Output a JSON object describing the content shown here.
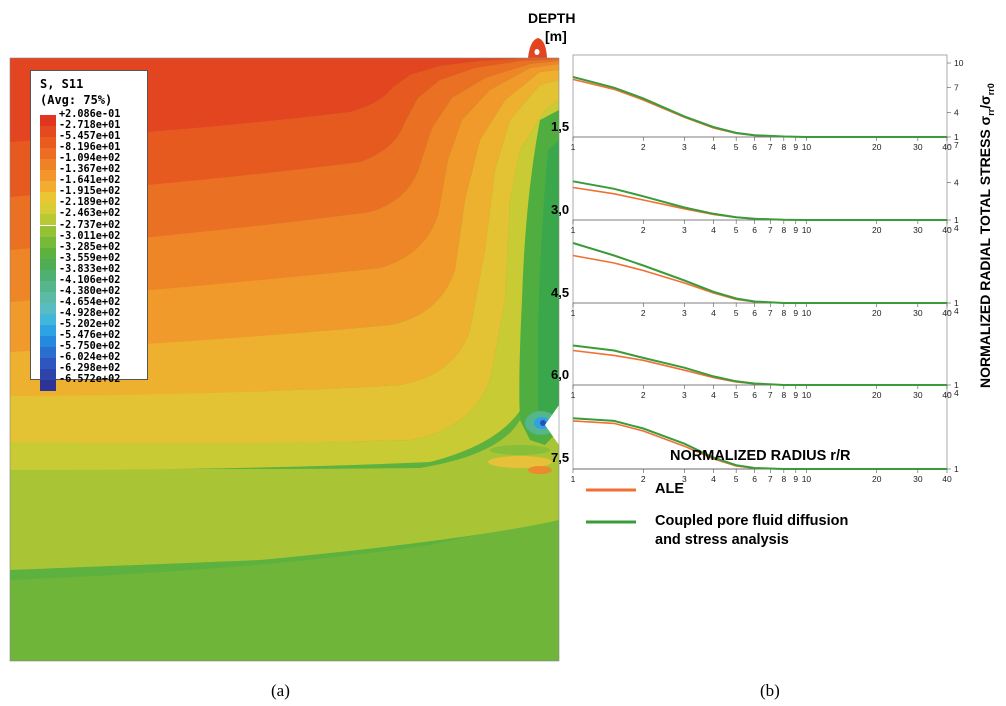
{
  "legend": {
    "title_line1": "S, S11",
    "title_line2": "(Avg: 75%)",
    "values": [
      "+2.086e-01",
      "-2.718e+01",
      "-5.457e+01",
      "-8.196e+01",
      "-1.094e+02",
      "-1.367e+02",
      "-1.641e+02",
      "-1.915e+02",
      "-2.189e+02",
      "-2.463e+02",
      "-2.737e+02",
      "-3.011e+02",
      "-3.285e+02",
      "-3.559e+02",
      "-3.833e+02",
      "-4.106e+02",
      "-4.380e+02",
      "-4.654e+02",
      "-4.928e+02",
      "-5.202e+02",
      "-5.476e+02",
      "-5.750e+02",
      "-6.024e+02",
      "-6.298e+02",
      "-6.572e+02"
    ],
    "colors": [
      "#e2351f",
      "#e6481f",
      "#e95b1f",
      "#ed6e22",
      "#f08226",
      "#f3962b",
      "#f2ad30",
      "#eac534",
      "#d6cc36",
      "#b7c935",
      "#95c235",
      "#76ba37",
      "#5cb23c",
      "#4fae55",
      "#50b06f",
      "#55b58b",
      "#5cbaa6",
      "#58bcc2",
      "#43b6dc",
      "#2ea3e4",
      "#2589dd",
      "#2a6fd0",
      "#2d57be",
      "#2e44aa",
      "#2c3497"
    ]
  },
  "depth_header": {
    "line1": "DEPTH",
    "line2": "[m]"
  },
  "panels": [
    {
      "depth": "1,5",
      "yticks": [
        "10",
        "7",
        "4",
        "1"
      ]
    },
    {
      "depth": "3,0",
      "yticks": [
        "7",
        "4",
        "1"
      ]
    },
    {
      "depth": "4,5",
      "yticks": [
        "4",
        "1"
      ]
    },
    {
      "depth": "6,0",
      "yticks": [
        "4",
        "1"
      ]
    },
    {
      "depth": "7,5",
      "yticks": [
        "4",
        "1"
      ]
    }
  ],
  "x_ticks": [
    "1",
    "2",
    "3",
    "4",
    "5",
    "6",
    "7",
    "8",
    "9",
    "10",
    "20",
    "30",
    "40"
  ],
  "x_axis_label": "NORMALIZED RADIUS r/R",
  "y_axis_label": "NORMALIZED RADIAL TOTAL STRESS σ",
  "y_axis_sub_rr": "rr",
  "y_axis_slash": "/σ",
  "y_axis_sub_rr0": "rr0",
  "key": {
    "ale": "ALE",
    "coupled_line1": "Coupled pore fluid diffusion",
    "coupled_line2": "and stress analysis",
    "ale_color": "#f07032",
    "coupled_color": "#3a9b3a"
  },
  "captions": {
    "a": "(a)",
    "b": "(b)"
  },
  "chart_data": [
    {
      "type": "line",
      "depth": "1,5",
      "x": [
        1,
        1.5,
        2,
        3,
        4,
        5,
        6,
        8,
        10,
        20,
        40
      ],
      "series": [
        {
          "name": "ALE",
          "values": [
            8.0,
            6.8,
            5.5,
            3.4,
            2.1,
            1.45,
            1.2,
            1.05,
            1.0,
            1.0,
            1.0
          ]
        },
        {
          "name": "Coupled pore fluid diffusion and stress analysis",
          "values": [
            8.3,
            7.0,
            5.7,
            3.5,
            2.2,
            1.5,
            1.22,
            1.06,
            1.0,
            1.0,
            1.0
          ]
        }
      ],
      "ylim": [
        1,
        10
      ]
    },
    {
      "type": "line",
      "depth": "3,0",
      "x": [
        1,
        1.5,
        2,
        3,
        4,
        5,
        6,
        8,
        10,
        20,
        40
      ],
      "series": [
        {
          "name": "ALE",
          "values": [
            3.6,
            3.1,
            2.6,
            1.9,
            1.45,
            1.2,
            1.1,
            1.02,
            1.0,
            1.0,
            1.0
          ]
        },
        {
          "name": "Coupled pore fluid diffusion and stress analysis",
          "values": [
            4.1,
            3.5,
            2.9,
            2.0,
            1.5,
            1.22,
            1.1,
            1.02,
            1.0,
            1.0,
            1.0
          ]
        }
      ],
      "ylim": [
        1,
        7
      ]
    },
    {
      "type": "line",
      "depth": "4,5",
      "x": [
        1,
        1.5,
        2,
        3,
        4,
        5,
        6,
        8,
        10,
        20,
        40
      ],
      "series": [
        {
          "name": "ALE",
          "values": [
            2.9,
            2.6,
            2.3,
            1.8,
            1.4,
            1.15,
            1.05,
            1.0,
            1.0,
            1.0,
            1.0
          ]
        },
        {
          "name": "Coupled pore fluid diffusion and stress analysis",
          "values": [
            3.4,
            2.9,
            2.5,
            1.9,
            1.45,
            1.18,
            1.06,
            1.0,
            1.0,
            1.0,
            1.0
          ]
        }
      ],
      "ylim": [
        1,
        4
      ]
    },
    {
      "type": "line",
      "depth": "6,0",
      "x": [
        1,
        1.5,
        2,
        3,
        4,
        5,
        6,
        8,
        10,
        20,
        40
      ],
      "series": [
        {
          "name": "ALE",
          "values": [
            2.4,
            2.2,
            2.0,
            1.6,
            1.3,
            1.12,
            1.05,
            1.0,
            1.0,
            1.0,
            1.0
          ]
        },
        {
          "name": "Coupled pore fluid diffusion and stress analysis",
          "values": [
            2.6,
            2.4,
            2.1,
            1.7,
            1.35,
            1.15,
            1.06,
            1.0,
            1.0,
            1.0,
            1.0
          ]
        }
      ],
      "ylim": [
        1,
        4
      ]
    },
    {
      "type": "line",
      "depth": "7,5",
      "x": [
        1,
        1.5,
        2,
        3,
        4,
        5,
        6,
        8,
        10,
        20,
        40
      ],
      "series": [
        {
          "name": "ALE",
          "values": [
            2.9,
            2.8,
            2.5,
            1.9,
            1.4,
            1.12,
            1.03,
            1.0,
            1.0,
            1.0,
            1.0
          ]
        },
        {
          "name": "Coupled pore fluid diffusion and stress analysis",
          "values": [
            3.0,
            2.9,
            2.6,
            2.0,
            1.45,
            1.15,
            1.04,
            1.0,
            1.0,
            1.0,
            1.0
          ]
        }
      ],
      "ylim": [
        1,
        4
      ]
    }
  ]
}
